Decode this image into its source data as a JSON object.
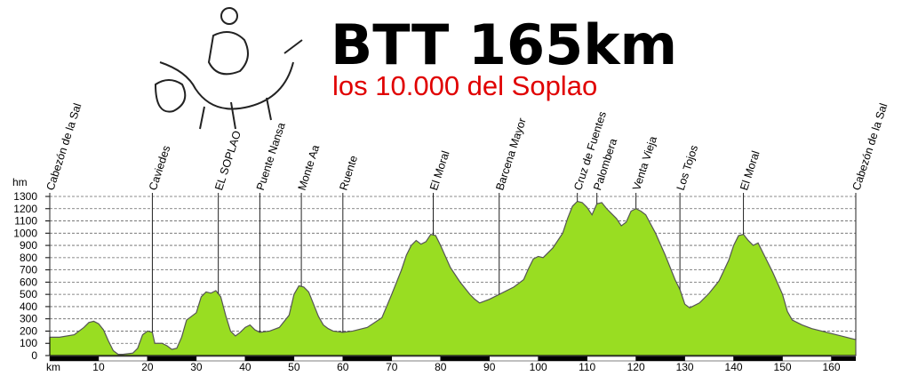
{
  "chart_data": {
    "type": "area",
    "title": "BTT 165km",
    "subtitle": "los 10.000 del Soplao",
    "y_axis_label": "hm",
    "x_axis_label": "km",
    "color": "#99dd22",
    "line_color": "#555555",
    "grid": true,
    "x": [
      0,
      2,
      5,
      7,
      8,
      9,
      10,
      11,
      12,
      13,
      14,
      15,
      17,
      18,
      19,
      20,
      21,
      21.5,
      23,
      24,
      25,
      26,
      27,
      28,
      29,
      30,
      31,
      32,
      33,
      34,
      35,
      36,
      37,
      38,
      39,
      40,
      41,
      42,
      43,
      45,
      47,
      49,
      50,
      51,
      52,
      53,
      54,
      55,
      56,
      57,
      58,
      60,
      62,
      65,
      68,
      70,
      72,
      73,
      74,
      75,
      76,
      77,
      78,
      79,
      80,
      82,
      84,
      86,
      87,
      88,
      90,
      92,
      95,
      97,
      98,
      99,
      100,
      101,
      103,
      105,
      106,
      107,
      108,
      109,
      110,
      111,
      112,
      113,
      114,
      115,
      116,
      117,
      118,
      119,
      120,
      121,
      122,
      124,
      126,
      128,
      129,
      130,
      131,
      133,
      135,
      137,
      139,
      140,
      141,
      142,
      143,
      144,
      145,
      146,
      148,
      150,
      151,
      152,
      154,
      156,
      158,
      160,
      162,
      165
    ],
    "values": [
      150,
      150,
      170,
      230,
      270,
      280,
      260,
      210,
      120,
      40,
      10,
      10,
      20,
      60,
      170,
      200,
      190,
      100,
      100,
      80,
      50,
      60,
      150,
      290,
      320,
      350,
      480,
      520,
      510,
      530,
      480,
      330,
      200,
      160,
      190,
      230,
      250,
      210,
      190,
      200,
      230,
      330,
      500,
      570,
      560,
      520,
      420,
      320,
      250,
      220,
      200,
      190,
      200,
      230,
      310,
      500,
      700,
      820,
      900,
      940,
      910,
      930,
      990,
      980,
      900,
      720,
      600,
      500,
      460,
      430,
      460,
      500,
      560,
      620,
      710,
      790,
      810,
      800,
      880,
      1000,
      1120,
      1220,
      1260,
      1250,
      1210,
      1150,
      1240,
      1250,
      1200,
      1160,
      1120,
      1060,
      1090,
      1180,
      1200,
      1180,
      1150,
      1000,
      820,
      620,
      540,
      420,
      390,
      430,
      510,
      610,
      780,
      900,
      980,
      990,
      940,
      900,
      920,
      840,
      680,
      500,
      360,
      290,
      250,
      220,
      200,
      180,
      160,
      130
    ],
    "xlim": [
      0,
      165
    ],
    "ylim": [
      0,
      1300
    ],
    "xticks": [
      10,
      20,
      30,
      40,
      50,
      60,
      70,
      80,
      90,
      100,
      110,
      120,
      130,
      140,
      150,
      160
    ],
    "yticks": [
      0,
      100,
      200,
      300,
      400,
      500,
      600,
      700,
      800,
      900,
      1000,
      1100,
      1200,
      1300
    ],
    "waypoints": [
      {
        "label": "Cabezón de la Sal",
        "km": 0
      },
      {
        "label": "Caviedes",
        "km": 21
      },
      {
        "label": "EL SOPLAO",
        "km": 34.5
      },
      {
        "label": "Puente Nansa",
        "km": 43
      },
      {
        "label": "Monte Aa",
        "km": 51.5
      },
      {
        "label": "Ruente",
        "km": 60
      },
      {
        "label": "El Moral",
        "km": 78.5
      },
      {
        "label": "Barcena Mayor",
        "km": 92
      },
      {
        "label": "Cruz de Fuentes",
        "km": 108
      },
      {
        "label": "Palombera",
        "km": 112
      },
      {
        "label": "Venta Vieja",
        "km": 120
      },
      {
        "label": "Los Tojos",
        "km": 129
      },
      {
        "label": "El Moral",
        "km": 142
      },
      {
        "label": "Cabezón de la Sal",
        "km": 165
      }
    ]
  }
}
